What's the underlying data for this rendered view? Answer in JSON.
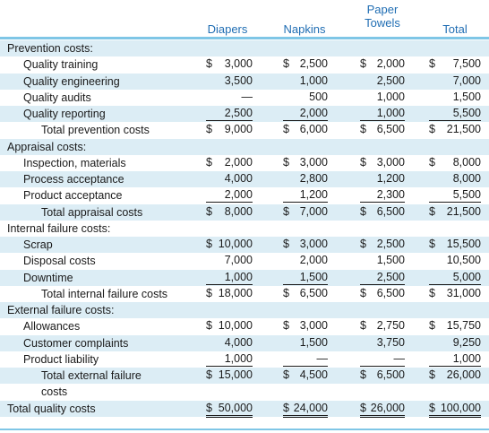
{
  "columns": [
    {
      "line1": "",
      "line2": "Diapers"
    },
    {
      "line1": "",
      "line2": "Napkins"
    },
    {
      "line1": "Paper",
      "line2": "Towels"
    },
    {
      "line1": "",
      "line2": "Total"
    }
  ],
  "rows": [
    {
      "label": "Prevention costs:",
      "indent": 0,
      "values": []
    },
    {
      "label": "Quality training",
      "indent": 1,
      "values": [
        {
          "sym": "$",
          "val": "3,000"
        },
        {
          "sym": "$",
          "val": "2,500"
        },
        {
          "sym": "$",
          "val": "2,000"
        },
        {
          "sym": "$",
          "val": "7,500"
        }
      ]
    },
    {
      "label": "Quality engineering",
      "indent": 1,
      "values": [
        {
          "sym": "",
          "val": "3,500"
        },
        {
          "sym": "",
          "val": "1,000"
        },
        {
          "sym": "",
          "val": "2,500"
        },
        {
          "sym": "",
          "val": "7,000"
        }
      ]
    },
    {
      "label": "Quality audits",
      "indent": 1,
      "values": [
        {
          "sym": "",
          "val": "—"
        },
        {
          "sym": "",
          "val": "500"
        },
        {
          "sym": "",
          "val": "1,000"
        },
        {
          "sym": "",
          "val": "1,500"
        }
      ]
    },
    {
      "label": "Quality reporting",
      "indent": 1,
      "values": [
        {
          "sym": "",
          "val": "2,500",
          "ul": "single"
        },
        {
          "sym": "",
          "val": "2,000",
          "ul": "single"
        },
        {
          "sym": "",
          "val": "1,000",
          "ul": "single"
        },
        {
          "sym": "",
          "val": "5,500",
          "ul": "single"
        }
      ]
    },
    {
      "label": "Total prevention costs",
      "indent": 2,
      "values": [
        {
          "sym": "$",
          "val": "9,000"
        },
        {
          "sym": "$",
          "val": "6,000"
        },
        {
          "sym": "$",
          "val": "6,500"
        },
        {
          "sym": "$",
          "val": "21,500"
        }
      ]
    },
    {
      "label": "Appraisal costs:",
      "indent": 0,
      "values": []
    },
    {
      "label": "Inspection, materials",
      "indent": 1,
      "values": [
        {
          "sym": "$",
          "val": "2,000"
        },
        {
          "sym": "$",
          "val": "3,000"
        },
        {
          "sym": "$",
          "val": "3,000"
        },
        {
          "sym": "$",
          "val": "8,000"
        }
      ]
    },
    {
      "label": "Process acceptance",
      "indent": 1,
      "values": [
        {
          "sym": "",
          "val": "4,000"
        },
        {
          "sym": "",
          "val": "2,800"
        },
        {
          "sym": "",
          "val": "1,200"
        },
        {
          "sym": "",
          "val": "8,000"
        }
      ]
    },
    {
      "label": "Product acceptance",
      "indent": 1,
      "values": [
        {
          "sym": "",
          "val": "2,000",
          "ul": "single"
        },
        {
          "sym": "",
          "val": "1,200",
          "ul": "single"
        },
        {
          "sym": "",
          "val": "2,300",
          "ul": "single"
        },
        {
          "sym": "",
          "val": "5,500",
          "ul": "single"
        }
      ]
    },
    {
      "label": "Total appraisal costs",
      "indent": 2,
      "values": [
        {
          "sym": "$",
          "val": "8,000"
        },
        {
          "sym": "$",
          "val": "7,000"
        },
        {
          "sym": "$",
          "val": "6,500"
        },
        {
          "sym": "$",
          "val": "21,500"
        }
      ]
    },
    {
      "label": "Internal failure costs:",
      "indent": 0,
      "values": []
    },
    {
      "label": "Scrap",
      "indent": 1,
      "values": [
        {
          "sym": "$",
          "val": "10,000"
        },
        {
          "sym": "$",
          "val": "3,000"
        },
        {
          "sym": "$",
          "val": "2,500"
        },
        {
          "sym": "$",
          "val": "15,500"
        }
      ]
    },
    {
      "label": "Disposal costs",
      "indent": 1,
      "values": [
        {
          "sym": "",
          "val": "7,000"
        },
        {
          "sym": "",
          "val": "2,000"
        },
        {
          "sym": "",
          "val": "1,500"
        },
        {
          "sym": "",
          "val": "10,500"
        }
      ]
    },
    {
      "label": "Downtime",
      "indent": 1,
      "values": [
        {
          "sym": "",
          "val": "1,000",
          "ul": "single"
        },
        {
          "sym": "",
          "val": "1,500",
          "ul": "single"
        },
        {
          "sym": "",
          "val": "2,500",
          "ul": "single"
        },
        {
          "sym": "",
          "val": "5,000",
          "ul": "single"
        }
      ]
    },
    {
      "label": "Total internal failure costs",
      "indent": 2,
      "values": [
        {
          "sym": "$",
          "val": "18,000"
        },
        {
          "sym": "$",
          "val": "6,500"
        },
        {
          "sym": "$",
          "val": "6,500"
        },
        {
          "sym": "$",
          "val": "31,000"
        }
      ]
    },
    {
      "label": "External failure costs:",
      "indent": 0,
      "values": []
    },
    {
      "label": "Allowances",
      "indent": 1,
      "values": [
        {
          "sym": "$",
          "val": "10,000"
        },
        {
          "sym": "$",
          "val": "3,000"
        },
        {
          "sym": "$",
          "val": "2,750"
        },
        {
          "sym": "$",
          "val": "15,750"
        }
      ]
    },
    {
      "label": "Customer complaints",
      "indent": 1,
      "values": [
        {
          "sym": "",
          "val": "4,000"
        },
        {
          "sym": "",
          "val": "1,500"
        },
        {
          "sym": "",
          "val": "3,750"
        },
        {
          "sym": "",
          "val": "9,250"
        }
      ]
    },
    {
      "label": "Product liability",
      "indent": 1,
      "values": [
        {
          "sym": "",
          "val": "1,000",
          "ul": "single"
        },
        {
          "sym": "",
          "val": "—",
          "ul": "single"
        },
        {
          "sym": "",
          "val": "—",
          "ul": "single"
        },
        {
          "sym": "",
          "val": "1,000",
          "ul": "single"
        }
      ]
    },
    {
      "label": "Total external failure",
      "indent": 2,
      "values": [
        {
          "sym": "$",
          "val": "15,000"
        },
        {
          "sym": "$",
          "val": "4,500"
        },
        {
          "sym": "$",
          "val": "6,500"
        },
        {
          "sym": "$",
          "val": "26,000"
        }
      ]
    },
    {
      "label": "costs",
      "indent": 2,
      "values": []
    },
    {
      "label": "Total quality costs",
      "indent": 0,
      "values": [
        {
          "sym": "$",
          "val": "50,000",
          "ul": "double"
        },
        {
          "sym": "$",
          "val": "24,000",
          "ul": "double"
        },
        {
          "sym": "$",
          "val": "26,000",
          "ul": "double"
        },
        {
          "sym": "$",
          "val": "100,000",
          "ul": "double"
        }
      ]
    }
  ]
}
